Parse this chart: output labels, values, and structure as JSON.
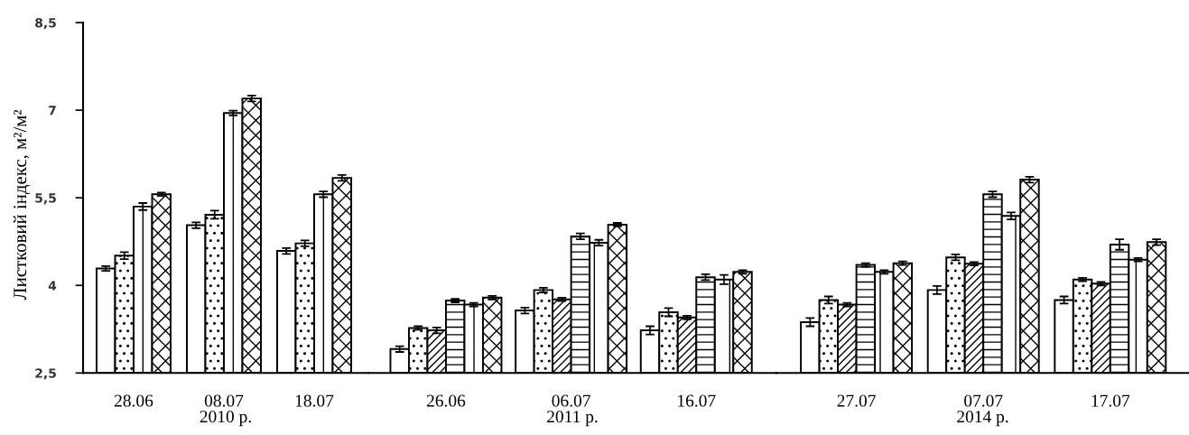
{
  "chart_data": [
    {
      "type": "bar",
      "categories": [
        "28.06",
        "08.07",
        "18.07"
      ],
      "xlabel": "2010 р.",
      "ylabel": "Листковий індекс, м²/м²",
      "ylim": [
        2.5,
        8.5
      ],
      "yticks": [
        {
          "value": 2.5,
          "label": "2,5"
        },
        4,
        {
          "value": 5.5,
          "label": "5,5"
        },
        7,
        {
          "value": 8.5,
          "label": "8,5"
        }
      ],
      "series": [
        {
          "color": "#ffffff",
          "values": [
            4.29,
            5.03,
            4.59
          ],
          "errors": [
            0.04,
            0.05,
            0.05
          ]
        },
        {
          "color": "#000000",
          "values": [
            4.51,
            5.21,
            4.72
          ],
          "errors": [
            0.06,
            0.07,
            0.05
          ]
        },
        {
          "values": [
            null,
            null,
            null
          ]
        },
        {
          "values": [
            null,
            null,
            null
          ]
        },
        {
          "color": "#000000",
          "values": [
            5.35,
            6.95,
            5.56
          ],
          "errors": [
            0.06,
            0.04,
            0.05
          ]
        },
        {
          "color": "#000000",
          "values": [
            5.56,
            7.2,
            5.84
          ],
          "errors": [
            0.03,
            0.05,
            0.05
          ]
        }
      ]
    },
    {
      "type": "bar",
      "categories": [
        "26.06",
        "06.07",
        "16.07"
      ],
      "xlabel": "2011 р.",
      "ylim": [
        2.5,
        8.5
      ],
      "tick_labels": "x",
      "series": [
        {
          "color": "#ffffff",
          "values": [
            2.91,
            3.57,
            3.23
          ],
          "errors": [
            0.05,
            0.05,
            0.07
          ]
        },
        {
          "color": "#000000",
          "values": [
            3.27,
            3.92,
            3.54
          ],
          "errors": [
            0.03,
            0.04,
            0.07
          ]
        },
        {
          "color": "#000000",
          "values": [
            3.23,
            3.76,
            3.45
          ],
          "errors": [
            0.05,
            0.03,
            0.03
          ]
        },
        {
          "color": "#000000",
          "values": [
            3.74,
            4.84,
            4.14
          ],
          "errors": [
            0.03,
            0.05,
            0.05
          ]
        },
        {
          "color": "#000000",
          "values": [
            3.67,
            4.73,
            4.1
          ],
          "errors": [
            0.03,
            0.05,
            0.08
          ]
        },
        {
          "color": "#000000",
          "values": [
            3.79,
            5.04,
            4.23
          ],
          "errors": [
            0.03,
            0.03,
            0.03
          ]
        }
      ]
    },
    {
      "type": "bar",
      "categories": [
        "27.07",
        "07.07",
        "17.07"
      ],
      "xlabel": "2014 р.",
      "ylim": [
        2.5,
        8.5
      ],
      "tick_labels": "x",
      "series": [
        {
          "color": "#ffffff",
          "values": [
            3.37,
            3.92,
            3.75
          ],
          "errors": [
            0.07,
            0.07,
            0.06
          ]
        },
        {
          "color": "#000000",
          "values": [
            3.75,
            4.48,
            4.1
          ],
          "errors": [
            0.06,
            0.05,
            0.03
          ]
        },
        {
          "color": "#000000",
          "values": [
            3.67,
            4.37,
            4.03
          ],
          "errors": [
            0.03,
            0.03,
            0.03
          ]
        },
        {
          "color": "#000000",
          "values": [
            4.35,
            5.56,
            4.7
          ],
          "errors": [
            0.03,
            0.05,
            0.09
          ]
        },
        {
          "color": "#000000",
          "values": [
            4.23,
            5.19,
            4.44
          ],
          "errors": [
            0.03,
            0.06,
            0.03
          ]
        },
        {
          "color": "#000000",
          "values": [
            4.38,
            5.81,
            4.74
          ],
          "errors": [
            0.03,
            0.05,
            0.05
          ]
        }
      ]
    }
  ]
}
